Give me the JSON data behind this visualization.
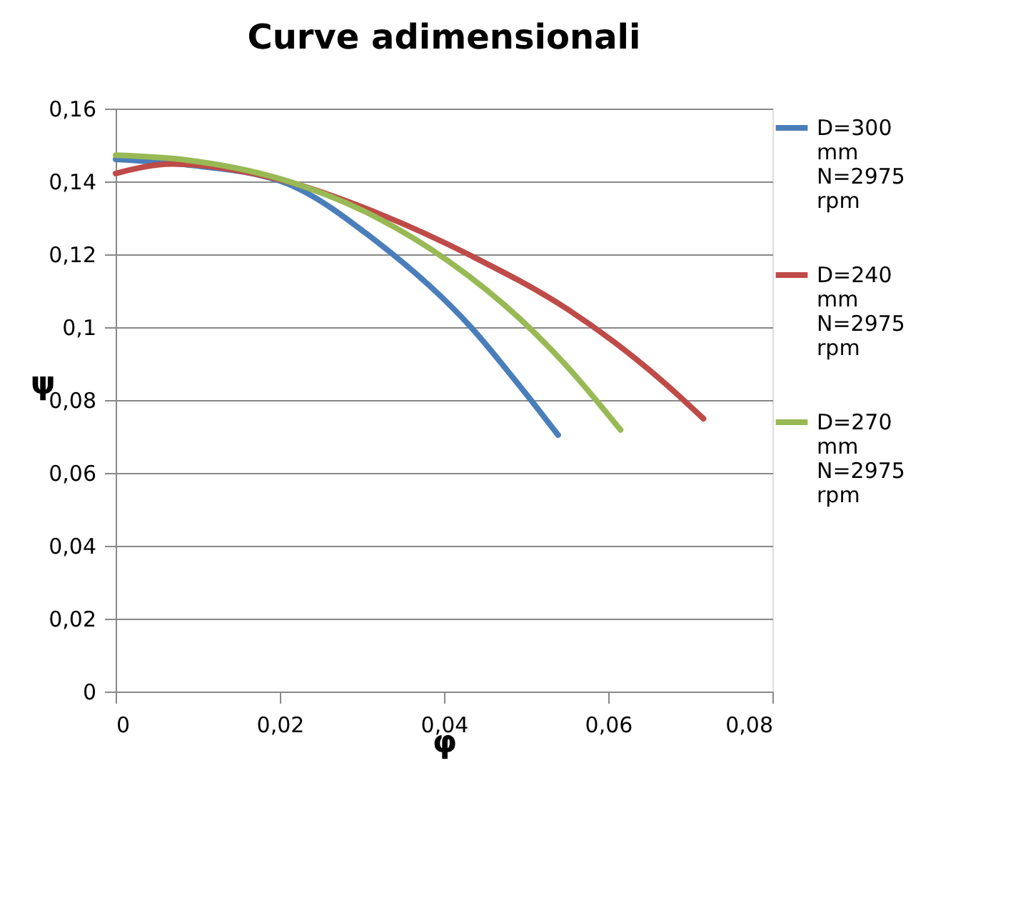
{
  "chart_data": {
    "type": "line",
    "title": "Curve adimensionali",
    "xlabel": "φ",
    "ylabel": "ψ",
    "xlim": [
      0,
      0.08
    ],
    "ylim": [
      0,
      0.16
    ],
    "xticks": [
      0,
      {
        "value": 0.02,
        "label": "0,02"
      },
      {
        "value": 0.04,
        "label": "0,04"
      },
      {
        "value": 0.06,
        "label": "0,06"
      },
      {
        "value": 0.08,
        "label": "0,08"
      }
    ],
    "yticks": [
      0,
      {
        "value": 0.02,
        "label": "0,02"
      },
      {
        "value": 0.04,
        "label": "0,04"
      },
      {
        "value": 0.06,
        "label": "0,06"
      },
      {
        "value": 0.08,
        "label": "0,08"
      },
      {
        "value": 0.1,
        "label": "0,1"
      },
      {
        "value": 0.12,
        "label": "0,12"
      },
      {
        "value": 0.14,
        "label": "0,14"
      },
      {
        "value": 0.16,
        "label": "0,16"
      }
    ],
    "grid": "y",
    "legend": "right",
    "marker": "none",
    "line_style": "solid",
    "series": [
      {
        "name": "D=300 mm N=2975 rpm",
        "color": "#4a7ebb",
        "x": [
          0,
          0.0086,
          0.0202,
          0.0318,
          0.0434,
          0.0492,
          0.0539
        ],
        "values": [
          0.1461,
          0.1446,
          0.14,
          0.1235,
          0.0997,
          0.0839,
          0.0704
        ]
      },
      {
        "name": "D=240 mm N=2975 rpm",
        "color": "#be4b48",
        "x": [
          0,
          0.0069,
          0.0202,
          0.0318,
          0.0434,
          0.055,
          0.0608,
          0.0666,
          0.0716
        ],
        "values": [
          0.1422,
          0.1448,
          0.1404,
          0.1314,
          0.1195,
          0.105,
          0.0958,
          0.0852,
          0.0749
        ]
      },
      {
        "name": "D=270 mm N=2975 rpm",
        "color": "#98b954",
        "x": [
          0,
          0.0086,
          0.0202,
          0.0318,
          0.0405,
          0.0492,
          0.055,
          0.0615
        ],
        "values": [
          0.1472,
          0.1459,
          0.1406,
          0.1301,
          0.1182,
          0.1024,
          0.0892,
          0.0718
        ]
      }
    ]
  }
}
